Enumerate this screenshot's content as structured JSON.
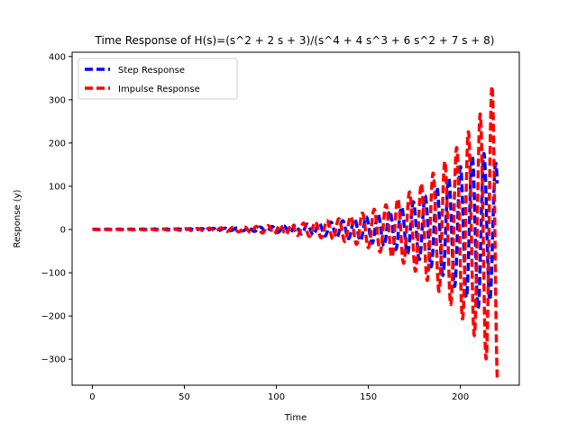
{
  "chart_data": {
    "type": "line",
    "title": "Time Response of H(s)=(s^2 + 2 s + 3)/(s^4 + 4 s^3 + 6 s^2 + 7 s + 8)",
    "xlabel": "Time",
    "ylabel": "Response (y)",
    "xlim": [
      -11,
      232
    ],
    "ylim": [
      -360,
      410
    ],
    "x_ticks": [
      0,
      50,
      100,
      150,
      200
    ],
    "x_tick_labels": [
      "0",
      "50",
      "100",
      "150",
      "200"
    ],
    "y_ticks": [
      -300,
      -200,
      -100,
      0,
      100,
      200,
      300,
      400
    ],
    "y_tick_labels": [
      "−300",
      "−200",
      "−100",
      "0",
      "100",
      "200",
      "300",
      "400"
    ],
    "grid": false,
    "legend_position": "top-left",
    "series": [
      {
        "name": "Step Response",
        "color": "#0000ff",
        "line_style": "dashed",
        "x": [
          0,
          10,
          20,
          30,
          40,
          50,
          60,
          70,
          80,
          90,
          100,
          110,
          120,
          130,
          140,
          150,
          160,
          170,
          180,
          190,
          200,
          210,
          220
        ],
        "amplitude": [
          0.4,
          0.5,
          0.6,
          0.8,
          1.0,
          1.3,
          1.8,
          2.5,
          3.5,
          5,
          7,
          9.5,
          13,
          17,
          22,
          30,
          40,
          55,
          75,
          105,
          145,
          185,
          150
        ],
        "oscillation_period": 6.4
      },
      {
        "name": "Impulse Response",
        "color": "#ff0000",
        "line_style": "dashed",
        "x": [
          0,
          10,
          20,
          30,
          40,
          50,
          60,
          70,
          80,
          90,
          100,
          110,
          120,
          130,
          140,
          150,
          160,
          170,
          180,
          190,
          200,
          210,
          220
        ],
        "amplitude": [
          0.3,
          0.5,
          0.7,
          1.0,
          1.4,
          2.0,
          2.8,
          4,
          5.5,
          7.5,
          10,
          13,
          17,
          22,
          30,
          42,
          58,
          80,
          110,
          150,
          200,
          260,
          360
        ],
        "oscillation_period": 6.4
      }
    ]
  }
}
